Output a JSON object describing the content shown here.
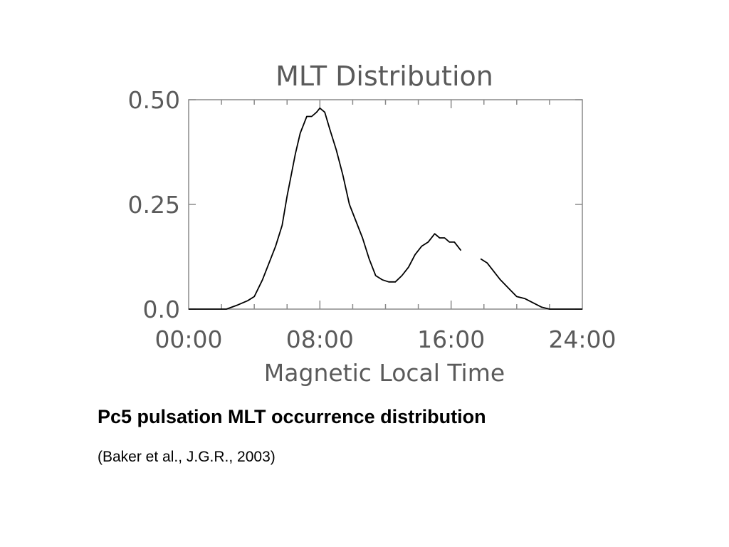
{
  "caption": {
    "title": "Pc5 pulsation MLT occurrence distribution",
    "reference": "(Baker et al., J.G.R., 2003)"
  },
  "chart_data": {
    "type": "line",
    "title": "MLT Distribution",
    "xlabel": "Magnetic Local Time",
    "ylabel": "",
    "xlim": [
      0,
      24
    ],
    "ylim": [
      0,
      0.5
    ],
    "x_ticks": [
      0,
      8,
      16,
      24
    ],
    "x_tick_labels": [
      "00:00",
      "08:00",
      "16:00",
      "24:00"
    ],
    "y_ticks": [
      0,
      0.25,
      0.5
    ],
    "y_tick_labels": [
      "0.0",
      "0.25",
      "0.50"
    ],
    "grid": false,
    "line_color": "#000000",
    "series": [
      {
        "segments": [
          {
            "x": [
              0,
              1,
              2.3,
              3,
              3.6,
              4,
              4.5,
              5,
              5.3,
              5.7,
              6,
              6.3,
              6.5,
              6.8,
              7,
              7.2,
              7.5,
              7.8,
              8,
              8.3,
              8.6,
              9,
              9.4,
              9.8,
              10.2,
              10.6,
              11,
              11.4,
              11.8,
              12.2,
              12.6,
              13,
              13.4,
              13.8,
              14.2,
              14.6,
              15,
              15.3,
              15.6,
              15.9,
              16.2,
              16.6
            ],
            "y": [
              0,
              0,
              0,
              0.01,
              0.02,
              0.03,
              0.07,
              0.12,
              0.15,
              0.2,
              0.27,
              0.33,
              0.37,
              0.42,
              0.44,
              0.46,
              0.46,
              0.47,
              0.48,
              0.47,
              0.43,
              0.38,
              0.32,
              0.25,
              0.21,
              0.17,
              0.12,
              0.08,
              0.07,
              0.065,
              0.065,
              0.08,
              0.1,
              0.13,
              0.15,
              0.16,
              0.18,
              0.17,
              0.17,
              0.16,
              0.16,
              0.14
            ]
          },
          {
            "x": [
              17.8,
              18.2,
              18.6,
              19,
              19.5,
              20,
              20.5,
              21,
              21.5,
              22,
              23,
              24
            ],
            "y": [
              0.12,
              0.11,
              0.09,
              0.07,
              0.05,
              0.03,
              0.025,
              0.015,
              0.005,
              0,
              0,
              0
            ]
          }
        ]
      }
    ]
  }
}
